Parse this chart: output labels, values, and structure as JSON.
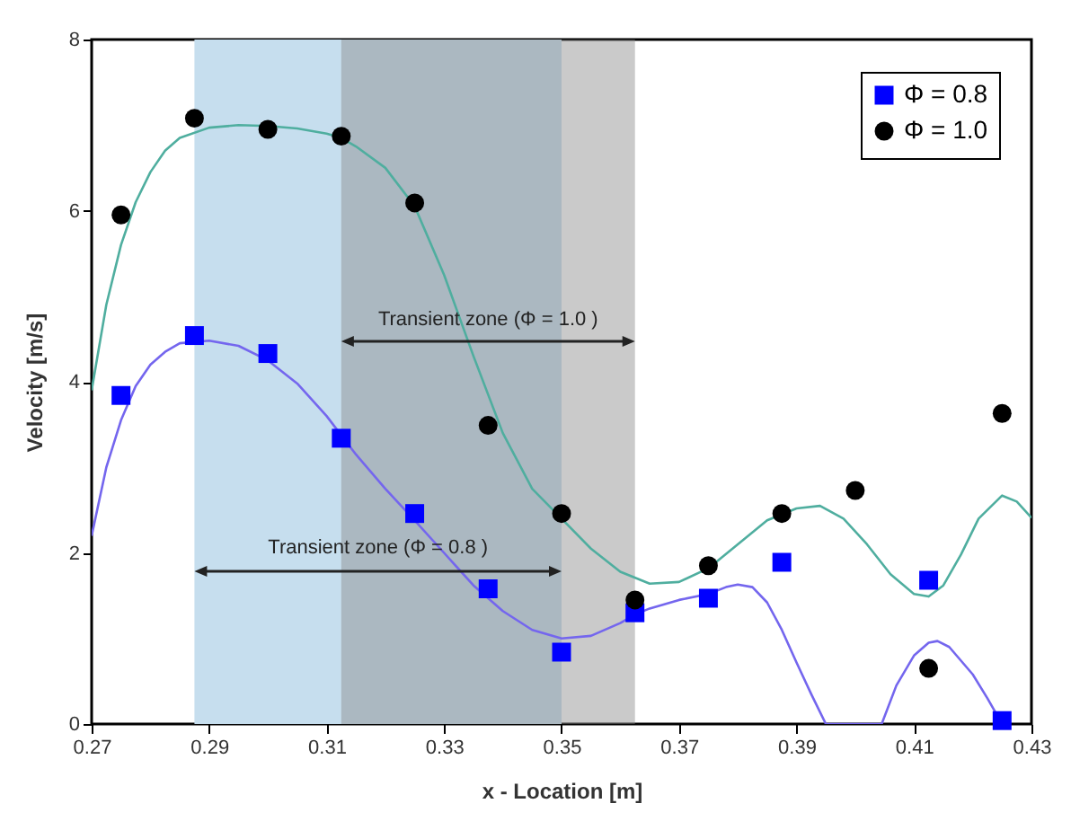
{
  "chart_data": {
    "type": "scatter",
    "xlabel": "x - Location [m]",
    "ylabel": "Velocity [m/s]",
    "xlim": [
      0.27,
      0.43
    ],
    "xticks": [
      0.27,
      0.29,
      0.31,
      0.33,
      0.35,
      0.37,
      0.39,
      0.41,
      0.43
    ],
    "ylim": [
      0,
      8
    ],
    "yticks": [
      0,
      2,
      4,
      6,
      8
    ],
    "legend": "top right",
    "bands": [
      {
        "axis": "x",
        "from": 0.2875,
        "to": 0.35,
        "label": "Transient zone (Φ = 0.8 )",
        "color": "#c6deee"
      },
      {
        "axis": "x",
        "from": 0.3125,
        "to": 0.3625,
        "label": "Transient zone (Φ = 1.0 )",
        "color": "#8a8a8a"
      }
    ],
    "series": [
      {
        "name": "Φ = 0.8",
        "marker": "square",
        "color": "#0000ff",
        "x": [
          0.275,
          0.2875,
          0.3,
          0.3125,
          0.325,
          0.3375,
          0.35,
          0.3625,
          0.375,
          0.3875,
          0.4125,
          0.425
        ],
        "values": [
          3.84,
          4.54,
          4.33,
          3.34,
          2.46,
          1.58,
          0.84,
          1.3,
          1.47,
          1.89,
          1.68,
          0.04
        ]
      },
      {
        "name": "Φ = 1.0",
        "marker": "circle",
        "color": "#000000",
        "x": [
          0.275,
          0.2875,
          0.3,
          0.3125,
          0.325,
          0.3375,
          0.35,
          0.3625,
          0.375,
          0.3875,
          0.4,
          0.4125,
          0.425
        ],
        "values": [
          5.95,
          7.08,
          6.95,
          6.87,
          6.09,
          3.49,
          2.46,
          1.45,
          1.85,
          2.46,
          2.73,
          0.65,
          3.63
        ]
      },
      {
        "type": "line",
        "color": "#7466ee",
        "x": [
          0.27,
          0.2725,
          0.275,
          0.2775,
          0.28,
          0.2825,
          0.285,
          0.29,
          0.295,
          0.3,
          0.305,
          0.31,
          0.315,
          0.32,
          0.325,
          0.33,
          0.335,
          0.34,
          0.345,
          0.35,
          0.355,
          0.36,
          0.3625,
          0.365,
          0.37,
          0.375,
          0.378,
          0.38,
          0.3825,
          0.385,
          0.3875,
          0.39,
          0.3925,
          0.395,
          0.4,
          0.4045,
          0.407,
          0.41,
          0.4125,
          0.414,
          0.416,
          0.42,
          0.4225,
          0.425
        ],
        "values": [
          2.2,
          3.0,
          3.55,
          3.95,
          4.2,
          4.35,
          4.45,
          4.48,
          4.42,
          4.25,
          3.98,
          3.6,
          3.15,
          2.75,
          2.38,
          2.0,
          1.62,
          1.32,
          1.1,
          1.0,
          1.03,
          1.18,
          1.28,
          1.35,
          1.45,
          1.52,
          1.6,
          1.63,
          1.6,
          1.42,
          1.1,
          0.72,
          0.35,
          0,
          null,
          0,
          0.45,
          0.8,
          0.95,
          0.97,
          0.9,
          0.58,
          0.3,
          0
        ]
      },
      {
        "type": "line",
        "color": "#4fae9f",
        "x": [
          0.27,
          0.2725,
          0.275,
          0.2775,
          0.28,
          0.2825,
          0.285,
          0.29,
          0.295,
          0.3,
          0.305,
          0.31,
          0.3125,
          0.315,
          0.32,
          0.325,
          0.33,
          0.335,
          0.34,
          0.345,
          0.35,
          0.355,
          0.36,
          0.365,
          0.37,
          0.375,
          0.38,
          0.385,
          0.39,
          0.394,
          0.398,
          0.402,
          0.406,
          0.41,
          0.4125,
          0.415,
          0.418,
          0.421,
          0.425,
          0.4275,
          0.43
        ],
        "values": [
          3.9,
          4.9,
          5.6,
          6.1,
          6.45,
          6.7,
          6.85,
          6.97,
          7.0,
          6.99,
          6.96,
          6.9,
          6.85,
          6.75,
          6.5,
          6.05,
          5.25,
          4.3,
          3.4,
          2.75,
          2.4,
          2.05,
          1.78,
          1.64,
          1.66,
          1.82,
          2.1,
          2.38,
          2.52,
          2.55,
          2.4,
          2.1,
          1.75,
          1.52,
          1.49,
          1.62,
          1.98,
          2.4,
          2.67,
          2.6,
          2.41
        ]
      }
    ]
  }
}
